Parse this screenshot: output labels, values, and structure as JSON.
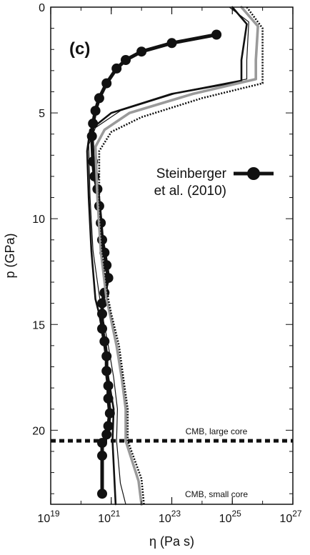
{
  "chart_data": {
    "type": "line",
    "panel_label": "(c)",
    "xlabel": "η (Pa s)",
    "ylabel": "p (GPa)",
    "x_scale": "log",
    "xlim": [
      1e+19,
      1e+27
    ],
    "ylim": [
      0,
      23.5
    ],
    "y_inverted": true,
    "x_ticks": [
      {
        "mant": "10",
        "exp": "19",
        "value": 1e+19
      },
      {
        "mant": "10",
        "exp": "21",
        "value": 1e+21
      },
      {
        "mant": "10",
        "exp": "23",
        "value": 1e+23
      },
      {
        "mant": "10",
        "exp": "25",
        "value": 1e+25
      },
      {
        "mant": "10",
        "exp": "27",
        "value": 1e+27
      }
    ],
    "y_ticks": [
      0,
      5,
      10,
      15,
      20
    ],
    "grid": false,
    "legend": {
      "position": "right-center",
      "label_line1": "Steinberger",
      "label_line2": "et al. (2010)"
    },
    "annotations": [
      {
        "text": "CMB, large core",
        "pressure": 20.5,
        "line": "dotted"
      },
      {
        "text": "CMB, small core",
        "pressure": 23.3,
        "line": "none"
      }
    ],
    "series": [
      {
        "style": "black-marker",
        "color": "#111111",
        "x": [
          3e+24,
          1e+23,
          1e+22,
          3e+21,
          1.5e+21,
          7e+20,
          4e+20,
          3e+20,
          2.5e+20,
          2.3e+20,
          2.5e+20,
          2.8e+20,
          3.5e+20,
          4e+20,
          4.5e+20,
          5e+20,
          6e+20,
          7e+20,
          8e+20,
          6e+20,
          5e+20,
          5e+20,
          5e+20,
          6e+20,
          7e+20,
          7e+20,
          8e+20,
          8e+20,
          9e+20,
          8e+20,
          7e+20,
          5e+20,
          5e+20,
          5e+20
        ],
        "y": [
          1.3,
          1.7,
          2.1,
          2.5,
          2.9,
          3.6,
          4.3,
          4.9,
          5.5,
          6.1,
          7.3,
          8.0,
          8.6,
          9.4,
          10.2,
          11.0,
          11.6,
          12.2,
          12.8,
          13.5,
          14.0,
          14.5,
          15.2,
          15.8,
          16.5,
          17.2,
          17.9,
          18.5,
          19.2,
          19.8,
          20.2,
          20.6,
          21.2,
          23.0
        ]
      },
      {
        "style": "thick-black",
        "color": "#111111",
        "x": [
          1e+25,
          3e+25,
          2e+25,
          2e+25,
          1e+23,
          1e+21,
          2e+20,
          1.6e+20,
          1.8e+20,
          2.2e+20,
          3e+20,
          4e+20,
          6e+20,
          8e+20,
          1.2e+21,
          1.1e+21,
          1.4e+21
        ],
        "y": [
          0,
          0.8,
          2.5,
          3.5,
          4.1,
          5.0,
          5.8,
          6.8,
          9.0,
          11.5,
          13.8,
          14.5,
          16.0,
          17.5,
          19.0,
          20.5,
          23.5
        ]
      },
      {
        "style": "thin-black",
        "color": "#111111",
        "x": [
          8e+24,
          3.5e+25,
          3e+25,
          3e+25,
          2e+23,
          2e+21,
          3e+20,
          1.8e+20,
          2e+20,
          2.5e+20,
          4e+20,
          5e+20,
          8e+20,
          1.2e+21,
          1.6e+21,
          1.5e+21,
          2e+21,
          3e+21
        ],
        "y": [
          0,
          0.7,
          2.5,
          3.4,
          4.0,
          4.9,
          5.7,
          6.5,
          9.0,
          11.5,
          13.6,
          14.5,
          16.0,
          17.5,
          19.0,
          20.5,
          22.5,
          23.5
        ]
      },
      {
        "style": "thick-gray",
        "color": "#9a9a9a",
        "x": [
          2e+25,
          7e+25,
          6e+25,
          6e+25,
          5e+23,
          4e+21,
          6e+20,
          3e+20,
          3.5e+20,
          4.5e+20,
          7e+20,
          9e+20,
          1.5e+21,
          2.2e+21,
          3e+21,
          3e+21,
          8e+21,
          1e+22
        ],
        "y": [
          0,
          0.9,
          2.5,
          3.4,
          4.1,
          5.0,
          5.8,
          6.6,
          9.0,
          11.5,
          13.8,
          14.5,
          16.0,
          17.5,
          19.0,
          20.5,
          22.4,
          23.5
        ]
      },
      {
        "style": "dotted-black",
        "color": "#111111",
        "x": [
          3e+25,
          1e+26,
          1e+26,
          1e+26,
          1e+24,
          1e+22,
          1e+21,
          4e+20,
          4e+20,
          5e+20,
          8e+20,
          1e+21,
          1.8e+21,
          2.5e+21,
          3.5e+21,
          3.5e+21,
          1e+22,
          1.2e+22
        ],
        "y": [
          0,
          1.0,
          2.5,
          3.6,
          4.3,
          5.2,
          5.9,
          6.8,
          9.0,
          11.5,
          13.8,
          14.5,
          16.0,
          17.5,
          19.0,
          20.5,
          22.3,
          23.5
        ]
      }
    ]
  }
}
